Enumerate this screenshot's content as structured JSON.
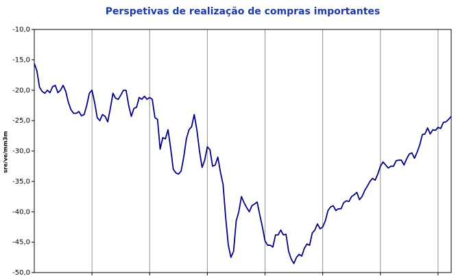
{
  "chart_data": {
    "type": "line",
    "title": "Perspetivas de realização de compras importantes",
    "y_label": "sre/ve/mm3m",
    "categories": [
      null,
      null,
      null,
      null,
      null,
      null,
      null,
      null,
      null,
      null,
      null,
      null,
      null,
      null,
      null,
      null,
      null,
      null,
      null,
      null,
      null,
      null,
      null,
      null,
      null,
      null,
      null,
      null,
      null,
      null,
      null,
      null,
      null,
      null,
      null,
      null,
      null,
      null,
      null,
      null,
      null,
      null,
      null,
      null,
      null,
      null,
      null,
      null,
      null,
      null,
      null,
      null,
      null,
      null,
      null,
      null,
      null,
      null,
      null,
      null,
      null,
      null,
      null,
      null,
      null,
      null,
      null,
      null,
      null,
      null,
      null,
      null,
      null,
      null,
      null,
      null,
      null,
      null,
      null,
      null,
      null,
      null,
      null,
      null,
      null,
      null,
      null,
      null,
      null,
      null,
      null,
      null,
      null,
      null,
      null,
      null,
      null,
      null,
      null,
      null,
      null,
      null,
      null,
      null,
      null,
      null,
      null,
      null,
      null,
      null,
      null,
      null,
      null,
      null,
      null,
      null,
      null,
      null,
      null,
      null,
      null,
      null,
      null,
      null,
      null,
      null,
      null,
      null,
      null,
      null,
      null,
      null,
      null,
      null,
      null,
      null,
      null,
      null,
      null,
      null,
      null,
      null,
      null,
      null,
      null,
      null,
      null,
      null,
      null,
      null,
      null,
      null,
      null,
      null,
      null,
      null,
      null,
      null,
      null,
      null
    ],
    "series": [
      {
        "name": null,
        "color": "#000080",
        "values": [
          -15.6,
          -16.8,
          -19.5,
          -20.2,
          -20.5,
          -20.0,
          -20.4,
          -19.4,
          -19.2,
          -20.4,
          -20.0,
          -19.2,
          -20.2,
          -22.0,
          -23.2,
          -23.8,
          -23.8,
          -23.5,
          -24.2,
          -24.0,
          -22.5,
          -20.5,
          -20.0,
          -22.0,
          -24.5,
          -25.0,
          -24.0,
          -24.3,
          -25.2,
          -23.0,
          -20.5,
          -21.3,
          -21.5,
          -20.8,
          -20.0,
          -20.0,
          -22.5,
          -24.3,
          -23.0,
          -22.8,
          -21.2,
          -21.5,
          -21.0,
          -21.5,
          -21.2,
          -21.5,
          -24.5,
          -24.8,
          -29.7,
          -27.8,
          -28.0,
          -26.5,
          -29.5,
          -33.0,
          -33.6,
          -33.8,
          -33.3,
          -31.0,
          -28.0,
          -26.5,
          -26.0,
          -24.0,
          -26.5,
          -30.0,
          -32.7,
          -31.5,
          -29.3,
          -29.8,
          -32.5,
          -32.3,
          -31.0,
          -33.5,
          -35.5,
          -41.0,
          -45.5,
          -47.5,
          -46.5,
          -41.5,
          -40.0,
          -37.5,
          -38.5,
          -39.3,
          -40.0,
          -39.0,
          -38.7,
          -38.4,
          -40.5,
          -42.5,
          -44.8,
          -45.5,
          -45.5,
          -45.8,
          -43.8,
          -43.8,
          -43.0,
          -43.8,
          -43.7,
          -46.5,
          -47.8,
          -48.5,
          -47.5,
          -47.0,
          -47.3,
          -46.0,
          -45.3,
          -45.5,
          -43.5,
          -43.0,
          -42.0,
          -42.8,
          -42.5,
          -41.5,
          -39.8,
          -39.2,
          -39.0,
          -39.8,
          -39.5,
          -39.5,
          -38.5,
          -38.2,
          -38.3,
          -37.5,
          -37.2,
          -36.8,
          -38.0,
          -37.5,
          -36.5,
          -35.8,
          -35.0,
          -34.5,
          -34.8,
          -33.8,
          -32.5,
          -31.8,
          -32.3,
          -32.8,
          -32.5,
          -32.5,
          -31.6,
          -31.5,
          -31.5,
          -32.3,
          -31.3,
          -30.5,
          -30.3,
          -31.2,
          -30.2,
          -29.0,
          -27.3,
          -27.2,
          -26.2,
          -27.2,
          -26.5,
          -26.6,
          -26.1,
          -26.3,
          -25.3,
          -25.2,
          -24.8,
          -24.3
        ]
      }
    ],
    "ylim": [
      -50,
      -10
    ],
    "yticks": [
      {
        "value": -50,
        "label": "-50,0"
      },
      {
        "value": -45,
        "label": "-45,0"
      },
      {
        "value": -40,
        "label": "-40,0"
      },
      {
        "value": -35,
        "label": "-35,0"
      },
      {
        "value": -30,
        "label": "-30,0"
      },
      {
        "value": -25,
        "label": "-25,0"
      },
      {
        "value": -20,
        "label": "-20,0"
      },
      {
        "value": -15,
        "label": "-15,0"
      },
      {
        "value": -10,
        "label": "-10,0"
      }
    ],
    "xgrid_interval": 22,
    "grid": false
  }
}
